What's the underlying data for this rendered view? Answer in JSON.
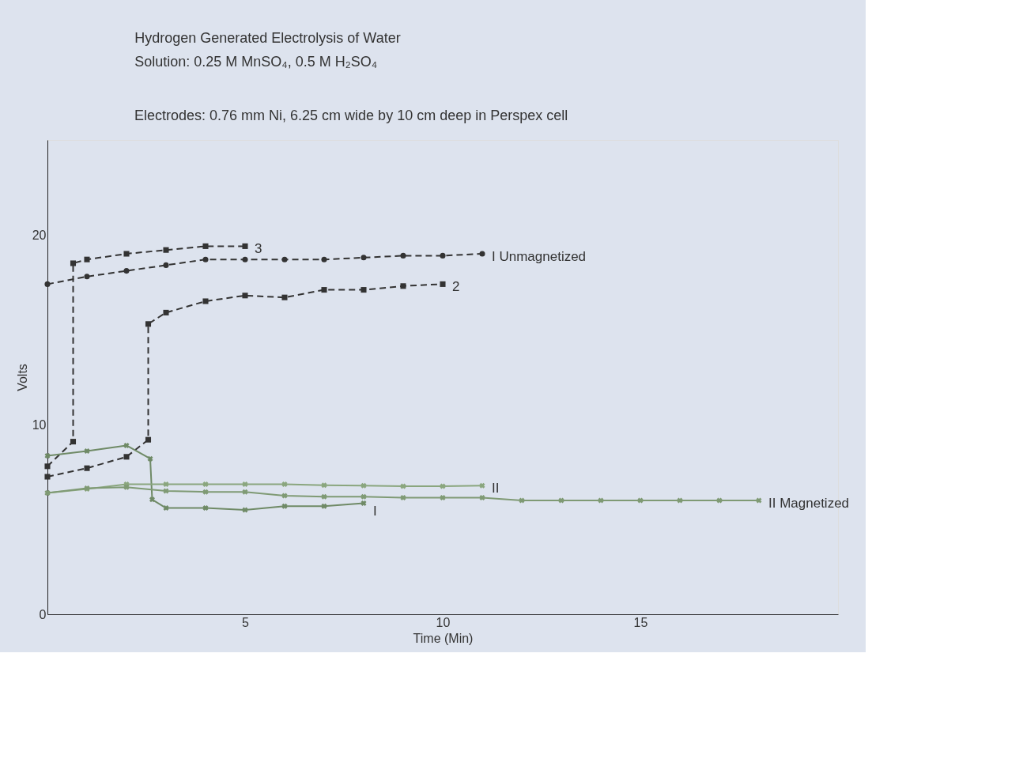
{
  "chart_data": {
    "type": "line",
    "title": "Hydrogen Generated Electrolysis of Water",
    "subtitle": "Solution: 0.25 M MnSO₄, 0.5 M H₂SO₄",
    "annotations": [
      "Electrodes: 0.76 mm Ni, 6.25 cm wide by 10 cm deep in Perspex cell"
    ],
    "xlabel": "Time (Min)",
    "ylabel": "Volts",
    "xlim": [
      0,
      20
    ],
    "xticks": [
      5,
      10,
      15
    ],
    "ylim": [
      0,
      25
    ],
    "yticks": [
      0,
      10,
      20
    ],
    "grid": false,
    "series": [
      {
        "name": "3",
        "color": "#333333",
        "marker": "square",
        "line_style": "dashed",
        "x": [
          0,
          0.65,
          0.65,
          1,
          2,
          3,
          4,
          5
        ],
        "values": [
          7.8,
          9.1,
          18.5,
          18.7,
          19.0,
          19.2,
          19.4,
          19.4
        ]
      },
      {
        "name": "I Unmagnetized",
        "color": "#333333",
        "marker": "circle",
        "line_style": "dashed",
        "x": [
          0,
          1,
          2,
          3,
          4,
          5,
          6,
          7,
          8,
          9,
          10,
          11
        ],
        "values": [
          17.4,
          17.8,
          18.1,
          18.4,
          18.7,
          18.7,
          18.7,
          18.7,
          18.8,
          18.9,
          18.9,
          19.0
        ]
      },
      {
        "name": "2",
        "color": "#333333",
        "marker": "square",
        "line_style": "dashed",
        "x": [
          0,
          1,
          2,
          2.55,
          2.55,
          3,
          4,
          5,
          6,
          7,
          8,
          9,
          10
        ],
        "values": [
          7.25,
          7.7,
          8.3,
          9.2,
          15.3,
          15.9,
          16.5,
          16.8,
          16.7,
          17.1,
          17.1,
          17.3,
          17.4
        ]
      },
      {
        "name": "I",
        "color": "#6f8a66",
        "marker": "cross",
        "line_style": "solid",
        "x": [
          0,
          1,
          2,
          2.6,
          2.65,
          3,
          4,
          5,
          6,
          7,
          8
        ],
        "values": [
          8.35,
          8.6,
          8.9,
          8.2,
          6.05,
          5.6,
          5.6,
          5.5,
          5.7,
          5.7,
          5.85
        ]
      },
      {
        "name": "II",
        "color": "#8aa67e",
        "marker": "cross",
        "line_style": "solid",
        "x": [
          0,
          1,
          2,
          3,
          4,
          5,
          6,
          7,
          8,
          9,
          10,
          11
        ],
        "values": [
          6.4,
          6.6,
          6.85,
          6.85,
          6.85,
          6.85,
          6.85,
          6.8,
          6.78,
          6.75,
          6.75,
          6.78
        ]
      },
      {
        "name": "II Magnetized",
        "color": "#7f9a74",
        "marker": "cross",
        "line_style": "solid",
        "x": [
          0,
          1,
          2,
          3,
          4,
          5,
          6,
          7,
          8,
          9,
          10,
          11,
          12,
          13,
          14,
          15,
          16,
          17,
          18
        ],
        "values": [
          6.4,
          6.65,
          6.7,
          6.5,
          6.45,
          6.45,
          6.25,
          6.2,
          6.2,
          6.15,
          6.15,
          6.15,
          6.0,
          6.0,
          6.0,
          6.0,
          6.0,
          6.0,
          6.0
        ]
      }
    ]
  }
}
